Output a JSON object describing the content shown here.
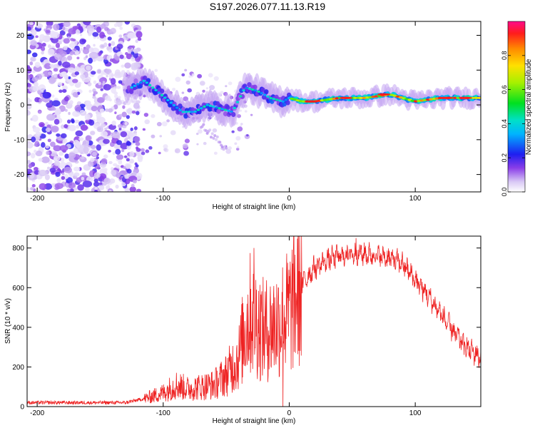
{
  "figure": {
    "title": "S197.2026.077.11.13.R19"
  },
  "chart_data": [
    {
      "type": "heatmap",
      "id": "spectrogram",
      "title": "",
      "xlabel": "Height of straight line (km)",
      "ylabel": "Frequency (Hz)",
      "xlim": [
        -208,
        152
      ],
      "ylim": [
        -25,
        24
      ],
      "xticks": [
        -200,
        -100,
        0,
        100
      ],
      "yticks": [
        -20,
        -10,
        0,
        10,
        20
      ],
      "colorbar": {
        "label": "Normalized spectral amplitude",
        "range": [
          0,
          1
        ],
        "ticks": [
          0.0,
          0.2,
          0.4,
          0.6,
          0.8
        ]
      },
      "signal_ridge": {
        "description_points_x_km": [
          -125,
          -115,
          -105,
          -95,
          -85,
          -75,
          -65,
          -55,
          -45,
          -35,
          -25,
          -15,
          -5,
          0,
          10,
          20,
          40,
          60,
          80,
          100,
          120,
          150
        ],
        "description_points_freq_hz": [
          5,
          7,
          4,
          1,
          -2,
          -2,
          0,
          -1,
          -2,
          5,
          4,
          2,
          1,
          2,
          1,
          1,
          2,
          2,
          3,
          1,
          2,
          2
        ]
      }
    },
    {
      "type": "line",
      "id": "snr",
      "title": "",
      "xlabel": "Height of straight line (km)",
      "ylabel": "SNR (10 * v/v)",
      "xlim": [
        -208,
        152
      ],
      "ylim": [
        0,
        860
      ],
      "xticks": [
        -200,
        -100,
        0,
        100
      ],
      "yticks": [
        0,
        200,
        400,
        600,
        800
      ],
      "color": "#ee2222",
      "envelope": {
        "x": [
          -208,
          -160,
          -130,
          -115,
          -100,
          -90,
          -80,
          -70,
          -60,
          -50,
          -40,
          -35,
          -30,
          -25,
          -20,
          -10,
          0,
          10,
          20,
          30,
          40,
          50,
          60,
          70,
          80,
          90,
          100,
          110,
          120,
          130,
          140,
          152
        ],
        "y": [
          20,
          20,
          20,
          40,
          70,
          110,
          90,
          100,
          110,
          160,
          250,
          400,
          480,
          420,
          380,
          420,
          480,
          620,
          700,
          740,
          760,
          770,
          770,
          760,
          750,
          720,
          640,
          560,
          470,
          380,
          300,
          250
        ]
      }
    }
  ]
}
